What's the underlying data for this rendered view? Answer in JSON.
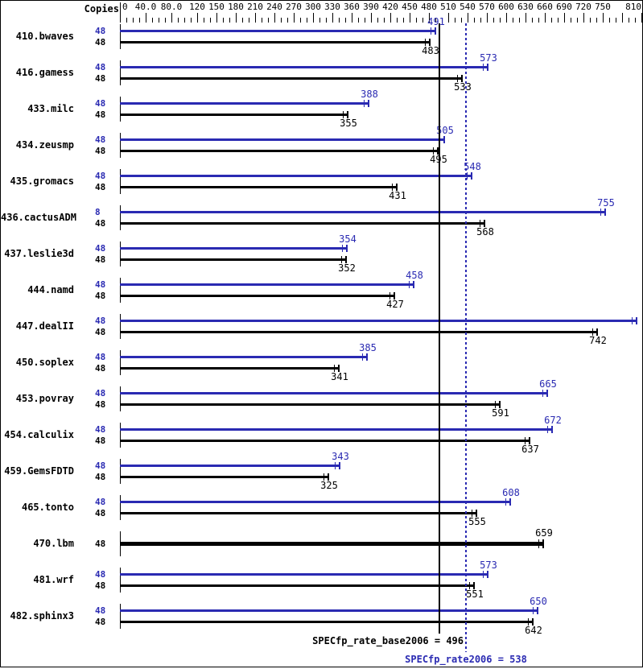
{
  "chart_data": {
    "type": "bar",
    "orientation": "horizontal",
    "copies_column_label": "Copies",
    "colors": {
      "peak": "#2a2ab2",
      "base": "#000000",
      "background": "#ffffff"
    },
    "axis": {
      "min": 0,
      "max": 810,
      "minor_tick_step": 10,
      "tick_values": [
        0,
        40,
        80,
        120,
        150,
        180,
        210,
        240,
        270,
        300,
        330,
        360,
        390,
        420,
        450,
        480,
        510,
        540,
        570,
        600,
        630,
        660,
        690,
        720,
        750,
        810
      ],
      "tick_labels": [
        "0",
        "40.0",
        "80.0",
        "120",
        "150",
        "180",
        "210",
        "240",
        "270",
        "300",
        "330",
        "360",
        "390",
        "420",
        "450",
        "480",
        "510",
        "540",
        "570",
        "600",
        "630",
        "660",
        "690",
        "720",
        "750",
        "810"
      ],
      "unlabeled_major_ticks": [
        780
      ]
    },
    "benchmarks": [
      {
        "name": "410.bwaves",
        "peak": {
          "copies": 48,
          "value": 491
        },
        "base": {
          "copies": 48,
          "value": 483
        }
      },
      {
        "name": "416.gamess",
        "peak": {
          "copies": 48,
          "value": 573
        },
        "base": {
          "copies": 48,
          "value": 533
        }
      },
      {
        "name": "433.milc",
        "peak": {
          "copies": 48,
          "value": 388
        },
        "base": {
          "copies": 48,
          "value": 355
        }
      },
      {
        "name": "434.zeusmp",
        "peak": {
          "copies": 48,
          "value": 505
        },
        "base": {
          "copies": 48,
          "value": 495
        }
      },
      {
        "name": "435.gromacs",
        "peak": {
          "copies": 48,
          "value": 548
        },
        "base": {
          "copies": 48,
          "value": 431
        }
      },
      {
        "name": "436.cactusADM",
        "peak": {
          "copies": 8,
          "value": 755
        },
        "base": {
          "copies": 48,
          "value": 568
        }
      },
      {
        "name": "437.leslie3d",
        "peak": {
          "copies": 48,
          "value": 354
        },
        "base": {
          "copies": 48,
          "value": 352
        }
      },
      {
        "name": "444.namd",
        "peak": {
          "copies": 48,
          "value": 458
        },
        "base": {
          "copies": 48,
          "value": 427
        }
      },
      {
        "name": "447.dealII",
        "peak": {
          "copies": 48,
          "value": 804
        },
        "base": {
          "copies": 48,
          "value": 742
        }
      },
      {
        "name": "450.soplex",
        "peak": {
          "copies": 48,
          "value": 385
        },
        "base": {
          "copies": 48,
          "value": 341
        }
      },
      {
        "name": "453.povray",
        "peak": {
          "copies": 48,
          "value": 665
        },
        "base": {
          "copies": 48,
          "value": 591
        }
      },
      {
        "name": "454.calculix",
        "peak": {
          "copies": 48,
          "value": 672
        },
        "base": {
          "copies": 48,
          "value": 637
        }
      },
      {
        "name": "459.GemsFDTD",
        "peak": {
          "copies": 48,
          "value": 343
        },
        "base": {
          "copies": 48,
          "value": 325
        }
      },
      {
        "name": "465.tonto",
        "peak": {
          "copies": 48,
          "value": 608
        },
        "base": {
          "copies": 48,
          "value": 555
        }
      },
      {
        "name": "470.lbm",
        "merged": true,
        "copies": 48,
        "value": 659
      },
      {
        "name": "481.wrf",
        "peak": {
          "copies": 48,
          "value": 573
        },
        "base": {
          "copies": 48,
          "value": 551
        }
      },
      {
        "name": "482.sphinx3",
        "peak": {
          "copies": 48,
          "value": 650
        },
        "base": {
          "copies": 48,
          "value": 642
        }
      }
    ],
    "reference_lines": [
      {
        "name": "SPECfp_rate_base2006",
        "value": 496,
        "style": "solid",
        "color": "#000000",
        "text": "SPECfp_rate_base2006 = 496"
      },
      {
        "name": "SPECfp_rate2006",
        "value": 538,
        "style": "dotted",
        "color": "#2a2ab2",
        "text": "SPECfp_rate2006 = 538"
      }
    ]
  }
}
